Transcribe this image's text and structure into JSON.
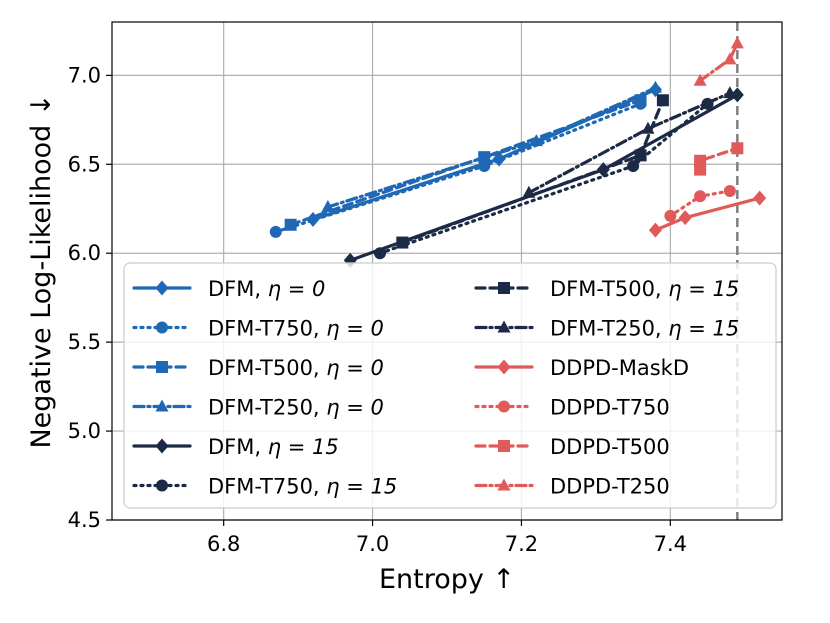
{
  "chart_data": {
    "type": "line",
    "xlabel": "Entropy ↑",
    "ylabel": "Negative Log-Likelihood ↓",
    "xlim": [
      6.65,
      7.55
    ],
    "ylim": [
      4.5,
      7.3
    ],
    "xticks": [
      6.8,
      7.0,
      7.2,
      7.4
    ],
    "yticks": [
      4.5,
      5.0,
      5.5,
      6.0,
      6.5,
      7.0
    ],
    "xtick_labels": [
      "6.8",
      "7.0",
      "7.2",
      "7.4"
    ],
    "ytick_labels": [
      "4.5",
      "5.0",
      "5.5",
      "6.0",
      "6.5",
      "7.0"
    ],
    "grid": true,
    "vline_x": 7.49,
    "legend_location": "lower-right",
    "colors": {
      "blue": "#1f68b5",
      "navy": "#1c2a45",
      "red": "#e05a5a",
      "vline": "#7f7f7f",
      "grid": "#b0b0b0"
    },
    "series": [
      {
        "name": "DFM, η = 0",
        "label": "DFM, ",
        "eta": "η = 0",
        "color": "#1f68b5",
        "dash": "solid",
        "marker": "diamond",
        "x": [
          6.92,
          7.17,
          7.38
        ],
        "y": [
          6.19,
          6.53,
          6.92
        ]
      },
      {
        "name": "DFM-T750, η = 0",
        "label": "DFM-T750, ",
        "eta": "η = 0",
        "color": "#1f68b5",
        "dash": "dot",
        "marker": "circle",
        "x": [
          6.87,
          7.15,
          7.36
        ],
        "y": [
          6.12,
          6.49,
          6.84
        ]
      },
      {
        "name": "DFM-T500, η = 0",
        "label": "DFM-T500, ",
        "eta": "η = 0",
        "color": "#1f68b5",
        "dash": "dash",
        "marker": "square",
        "x": [
          6.89,
          7.15,
          7.36
        ],
        "y": [
          6.16,
          6.54,
          6.86
        ]
      },
      {
        "name": "DFM-T250, η = 0",
        "label": "DFM-T250, ",
        "eta": "η = 0",
        "color": "#1f68b5",
        "dash": "dashdot",
        "marker": "triangle",
        "x": [
          6.94,
          7.22,
          7.38
        ],
        "y": [
          6.26,
          6.63,
          6.93
        ]
      },
      {
        "name": "DFM, η = 15",
        "label": "DFM, ",
        "eta": "η = 15",
        "color": "#1c2a45",
        "dash": "solid",
        "marker": "diamond",
        "x": [
          6.97,
          7.31,
          7.49
        ],
        "y": [
          5.96,
          6.47,
          6.89
        ]
      },
      {
        "name": "DFM-T750, η = 15",
        "label": "DFM-T750, ",
        "eta": "η = 15",
        "color": "#1c2a45",
        "dash": "dot",
        "marker": "circle",
        "x": [
          7.01,
          7.35,
          7.45
        ],
        "y": [
          6.0,
          6.49,
          6.84
        ]
      },
      {
        "name": "DFM-T500, η = 15",
        "label": "DFM-T500, ",
        "eta": "η = 15",
        "color": "#1c2a45",
        "dash": "dash",
        "marker": "square",
        "x": [
          7.04,
          7.36,
          7.39
        ],
        "y": [
          6.06,
          6.55,
          6.86
        ]
      },
      {
        "name": "DFM-T250, η = 15",
        "label": "DFM-T250, ",
        "eta": "η = 15",
        "color": "#1c2a45",
        "dash": "dashdot",
        "marker": "triangle",
        "x": [
          7.21,
          7.37,
          7.48
        ],
        "y": [
          6.34,
          6.7,
          6.9
        ]
      },
      {
        "name": "DDPD-MaskD",
        "label": "DDPD-MaskD",
        "eta": "",
        "color": "#e05a5a",
        "dash": "solid",
        "marker": "diamond",
        "x": [
          7.38,
          7.42,
          7.52
        ],
        "y": [
          6.13,
          6.2,
          6.31
        ]
      },
      {
        "name": "DDPD-T750",
        "label": "DDPD-T750",
        "eta": "",
        "color": "#e05a5a",
        "dash": "dot",
        "marker": "circle",
        "x": [
          7.4,
          7.44,
          7.48
        ],
        "y": [
          6.21,
          6.32,
          6.35
        ]
      },
      {
        "name": "DDPD-T500",
        "label": "DDPD-T500",
        "eta": "",
        "color": "#e05a5a",
        "dash": "dash",
        "marker": "square",
        "x": [
          7.44,
          7.44,
          7.49
        ],
        "y": [
          6.47,
          6.52,
          6.59
        ]
      },
      {
        "name": "DDPD-T250",
        "label": "DDPD-T250",
        "eta": "",
        "color": "#e05a5a",
        "dash": "dashdot",
        "marker": "triangle",
        "x": [
          7.44,
          7.48,
          7.49
        ],
        "y": [
          6.97,
          7.09,
          7.18
        ]
      }
    ]
  }
}
